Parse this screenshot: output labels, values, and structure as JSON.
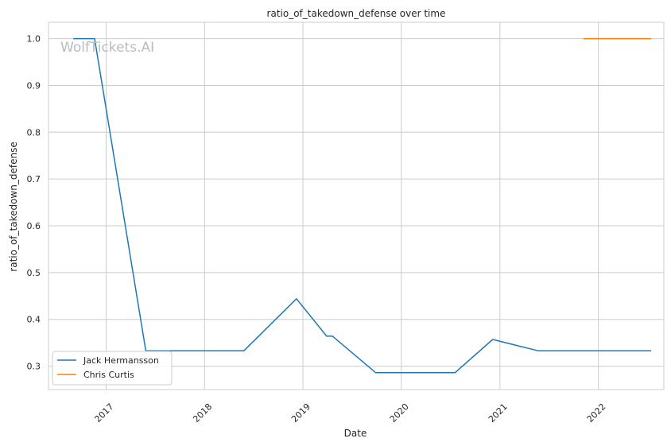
{
  "chart_data": {
    "type": "line",
    "title": "ratio_of_takedown_defense over time",
    "xlabel": "Date",
    "ylabel": "ratio_of_takedown_defense",
    "watermark": "WolfTickets.AI",
    "x_ticks": [
      "2017",
      "2018",
      "2019",
      "2020",
      "2021",
      "2022"
    ],
    "y_ticks": [
      "0.3",
      "0.4",
      "0.5",
      "0.6",
      "0.7",
      "0.8",
      "0.9",
      "1.0"
    ],
    "xlim": [
      "2016-06-01",
      "2022-09-01"
    ],
    "ylim": [
      0.25,
      1.035
    ],
    "grid": true,
    "legend_position": "lower-left",
    "series": [
      {
        "name": "Jack Hermansson",
        "color": "#1f77b4",
        "points": [
          [
            "2016-09-01",
            1.0
          ],
          [
            "2016-11-19",
            1.0
          ],
          [
            "2017-05-28",
            0.333
          ],
          [
            "2018-05-27",
            0.333
          ],
          [
            "2018-12-08",
            0.444
          ],
          [
            "2019-03-30",
            0.364
          ],
          [
            "2019-04-21",
            0.364
          ],
          [
            "2019-09-28",
            0.286
          ],
          [
            "2020-07-18",
            0.286
          ],
          [
            "2020-12-05",
            0.357
          ],
          [
            "2021-05-22",
            0.333
          ],
          [
            "2022-07-16",
            0.333
          ]
        ]
      },
      {
        "name": "Chris Curtis",
        "color": "#ff7f0e",
        "points": [
          [
            "2021-11-06",
            1.0
          ],
          [
            "2022-07-16",
            1.0
          ]
        ]
      }
    ]
  }
}
